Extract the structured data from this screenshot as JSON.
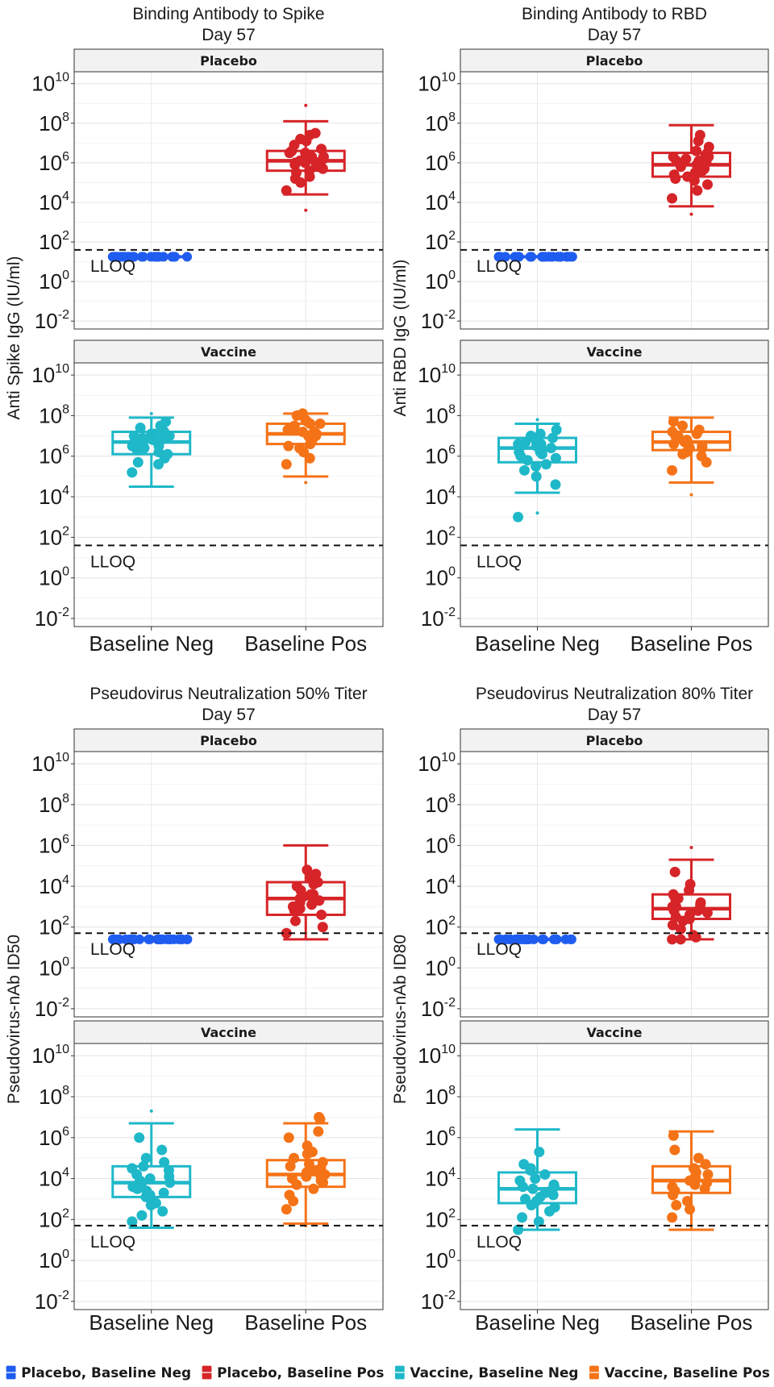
{
  "lloq_label": "LLOQ",
  "colors": {
    "Placebo, Baseline Neg": "#1f5cf0",
    "Placebo, Baseline Pos": "#d62428",
    "Vaccine, Baseline Neg": "#1fb8c9",
    "Vaccine, Baseline Pos": "#f57317"
  },
  "legend": [
    {
      "label": "Placebo, Baseline Neg",
      "color": "#1f5cf0"
    },
    {
      "label": "Placebo, Baseline Pos",
      "color": "#d62428"
    },
    {
      "label": "Vaccine, Baseline Neg",
      "color": "#1fb8c9"
    },
    {
      "label": "Vaccine, Baseline Pos",
      "color": "#f57317"
    }
  ],
  "chart_data": [
    {
      "type": "box",
      "title": "Binding Antibody to Spike",
      "subtitle": "Day 57",
      "ylabel": "Anti Spike IgG (IU/ml)",
      "y_scale": "log10",
      "ylim": [
        -2.4,
        10.6
      ],
      "y_ticks": [
        -2,
        0,
        2,
        4,
        6,
        8,
        10
      ],
      "categories": [
        "Baseline Neg",
        "Baseline Pos"
      ],
      "lloq_log10": 1.6,
      "panels": [
        {
          "label": "Placebo",
          "groups": [
            {
              "category": "Baseline Neg",
              "series": "Placebo, Baseline Neg",
              "collapsed": true,
              "min": 1.25,
              "q1": 1.25,
              "median": 1.25,
              "q3": 1.25,
              "max": 1.25,
              "outliers": [],
              "points": [
                1.25,
                1.25,
                1.25,
                1.25,
                1.25,
                1.25,
                1.25,
                1.25,
                1.25,
                1.25,
                1.25,
                1.25,
                1.25,
                1.25,
                1.25,
                1.25,
                1.25,
                1.25,
                1.25,
                1.25,
                1.25,
                1.25,
                1.25,
                1.25,
                1.25,
                1.25,
                1.25,
                1.25,
                1.25,
                1.25
              ]
            },
            {
              "category": "Baseline Pos",
              "series": "Placebo, Baseline Pos",
              "min": 4.4,
              "q1": 5.6,
              "median": 6.1,
              "q3": 6.6,
              "max": 8.1,
              "outliers": [
                3.6,
                8.9
              ],
              "points": [
                4.6,
                5.0,
                5.3,
                5.5,
                5.6,
                5.7,
                5.8,
                5.9,
                6.0,
                6.0,
                6.1,
                6.1,
                6.2,
                6.2,
                6.3,
                6.4,
                6.5,
                6.6,
                6.7,
                6.9,
                7.1,
                7.2,
                7.4,
                7.5,
                5.2,
                6.0,
                6.3,
                5.9,
                6.5
              ]
            }
          ]
        },
        {
          "label": "Vaccine",
          "groups": [
            {
              "category": "Baseline Neg",
              "series": "Vaccine, Baseline Neg",
              "min": 4.5,
              "q1": 6.1,
              "median": 6.7,
              "q3": 7.2,
              "max": 7.9,
              "outliers": [
                8.1
              ],
              "points": [
                5.2,
                5.6,
                5.7,
                5.9,
                6.1,
                6.3,
                6.4,
                6.5,
                6.6,
                6.7,
                6.8,
                6.8,
                6.9,
                7.0,
                7.1,
                7.2,
                7.3,
                7.4,
                7.5,
                7.7,
                6.2,
                6.6,
                6.9,
                7.0,
                6.5,
                6.8,
                7.1
              ]
            },
            {
              "category": "Baseline Pos",
              "series": "Vaccine, Baseline Pos",
              "min": 5.0,
              "q1": 6.6,
              "median": 7.1,
              "q3": 7.6,
              "max": 8.1,
              "outliers": [
                4.7
              ],
              "points": [
                5.6,
                5.9,
                6.2,
                6.5,
                6.7,
                6.8,
                6.9,
                7.0,
                7.1,
                7.2,
                7.2,
                7.3,
                7.4,
                7.5,
                7.6,
                7.7,
                7.8,
                8.0,
                8.1,
                6.4,
                6.9,
                7.3,
                7.6,
                7.0,
                6.6
              ]
            }
          ]
        }
      ]
    },
    {
      "type": "box",
      "title": "Binding Antibody to RBD",
      "subtitle": "Day 57",
      "ylabel": "Anti RBD IgG (IU/ml)",
      "y_scale": "log10",
      "ylim": [
        -2.4,
        10.6
      ],
      "y_ticks": [
        -2,
        0,
        2,
        4,
        6,
        8,
        10
      ],
      "categories": [
        "Baseline Neg",
        "Baseline Pos"
      ],
      "lloq_log10": 1.6,
      "panels": [
        {
          "label": "Placebo",
          "groups": [
            {
              "category": "Baseline Neg",
              "series": "Placebo, Baseline Neg",
              "collapsed": true,
              "min": 1.25,
              "q1": 1.25,
              "median": 1.25,
              "q3": 1.25,
              "max": 1.25,
              "outliers": [],
              "points": [
                1.25,
                1.25,
                1.25,
                1.25,
                1.25,
                1.25,
                1.25,
                1.25,
                1.25,
                1.25,
                1.25,
                1.25,
                1.25,
                1.25,
                1.25,
                1.25,
                1.25,
                1.25,
                1.25,
                1.25,
                1.25,
                1.25,
                1.25,
                1.25,
                1.25,
                1.25,
                1.25,
                1.25,
                1.25,
                1.25
              ]
            },
            {
              "category": "Baseline Pos",
              "series": "Placebo, Baseline Pos",
              "min": 3.8,
              "q1": 5.3,
              "median": 5.9,
              "q3": 6.5,
              "max": 7.9,
              "outliers": [
                3.4
              ],
              "points": [
                4.2,
                4.6,
                4.9,
                5.1,
                5.3,
                5.4,
                5.5,
                5.6,
                5.7,
                5.8,
                5.9,
                5.9,
                6.0,
                6.1,
                6.2,
                6.3,
                6.4,
                6.5,
                6.6,
                6.8,
                7.1,
                7.4,
                5.2,
                5.8,
                6.1,
                5.6,
                6.3
              ]
            }
          ]
        },
        {
          "label": "Vaccine",
          "groups": [
            {
              "category": "Baseline Neg",
              "series": "Vaccine, Baseline Neg",
              "min": 4.2,
              "q1": 5.7,
              "median": 6.4,
              "q3": 6.9,
              "max": 7.6,
              "outliers": [
                3.2,
                7.8
              ],
              "points": [
                3.0,
                4.6,
                5.0,
                5.3,
                5.6,
                5.8,
                6.0,
                6.2,
                6.3,
                6.4,
                6.5,
                6.6,
                6.7,
                6.8,
                6.9,
                7.0,
                7.1,
                7.3,
                5.5,
                6.1,
                6.4,
                6.6,
                5.9,
                6.2
              ]
            },
            {
              "category": "Baseline Pos",
              "series": "Vaccine, Baseline Pos",
              "min": 4.7,
              "q1": 6.3,
              "median": 6.7,
              "q3": 7.2,
              "max": 7.9,
              "outliers": [
                4.1
              ],
              "points": [
                5.3,
                5.7,
                6.0,
                6.2,
                6.4,
                6.5,
                6.6,
                6.7,
                6.8,
                6.9,
                7.0,
                7.1,
                7.2,
                7.3,
                7.5,
                7.7,
                6.1,
                6.6,
                6.9,
                7.0,
                6.4
              ]
            }
          ]
        }
      ]
    },
    {
      "type": "box",
      "title": "Pseudovirus Neutralization 50% Titer",
      "subtitle": "Day 57",
      "ylabel": "Pseudovirus-nAb ID50",
      "y_scale": "log10",
      "ylim": [
        -2.4,
        10.6
      ],
      "y_ticks": [
        -2,
        0,
        2,
        4,
        6,
        8,
        10
      ],
      "categories": [
        "Baseline Neg",
        "Baseline Pos"
      ],
      "lloq_log10": 1.7,
      "panels": [
        {
          "label": "Placebo",
          "groups": [
            {
              "category": "Baseline Neg",
              "series": "Placebo, Baseline Neg",
              "collapsed": true,
              "min": 1.4,
              "q1": 1.4,
              "median": 1.4,
              "q3": 1.4,
              "max": 1.4,
              "outliers": [],
              "points": [
                1.4,
                1.4,
                1.4,
                1.4,
                1.4,
                1.4,
                1.4,
                1.4,
                1.4,
                1.4,
                1.4,
                1.4,
                1.4,
                1.4,
                1.4,
                1.4,
                1.4,
                1.4,
                1.4,
                1.4,
                1.4,
                1.4,
                1.4,
                1.4,
                1.4,
                1.4,
                1.4,
                1.4,
                1.4,
                1.4
              ]
            },
            {
              "category": "Baseline Pos",
              "series": "Placebo, Baseline Pos",
              "min": 1.4,
              "q1": 2.6,
              "median": 3.4,
              "q3": 4.2,
              "max": 6.0,
              "outliers": [],
              "points": [
                1.7,
                2.0,
                2.3,
                2.6,
                2.8,
                3.0,
                3.2,
                3.4,
                3.5,
                3.6,
                3.8,
                4.0,
                4.2,
                4.4,
                4.6,
                4.8,
                3.1,
                3.6,
                2.9,
                4.1,
                3.3
              ]
            }
          ]
        },
        {
          "label": "Vaccine",
          "groups": [
            {
              "category": "Baseline Neg",
              "series": "Vaccine, Baseline Neg",
              "min": 1.6,
              "q1": 3.1,
              "median": 3.8,
              "q3": 4.6,
              "max": 6.7,
              "outliers": [
                7.3
              ],
              "points": [
                1.9,
                2.2,
                2.4,
                2.7,
                2.9,
                3.1,
                3.3,
                3.5,
                3.7,
                3.8,
                3.9,
                4.0,
                4.2,
                4.4,
                4.6,
                4.8,
                5.0,
                5.4,
                6.0,
                3.4,
                3.6,
                4.1,
                3.2,
                4.5,
                2.8
              ]
            },
            {
              "category": "Baseline Pos",
              "series": "Vaccine, Baseline Pos",
              "min": 1.8,
              "q1": 3.6,
              "median": 4.2,
              "q3": 4.9,
              "max": 6.7,
              "outliers": [
                1.7
              ],
              "points": [
                2.5,
                2.9,
                3.2,
                3.5,
                3.7,
                3.9,
                4.0,
                4.1,
                4.2,
                4.3,
                4.5,
                4.6,
                4.8,
                5.0,
                5.3,
                5.6,
                6.0,
                6.3,
                6.9,
                7.0,
                3.8,
                4.4,
                4.7,
                4.1,
                5.2
              ]
            }
          ]
        }
      ]
    },
    {
      "type": "box",
      "title": "Pseudovirus Neutralization 80% Titer",
      "subtitle": "Day 57",
      "ylabel": "Pseudovirus-nAb ID80",
      "y_scale": "log10",
      "ylim": [
        -2.4,
        10.6
      ],
      "y_ticks": [
        -2,
        0,
        2,
        4,
        6,
        8,
        10
      ],
      "categories": [
        "Baseline Neg",
        "Baseline Pos"
      ],
      "lloq_log10": 1.7,
      "panels": [
        {
          "label": "Placebo",
          "groups": [
            {
              "category": "Baseline Neg",
              "series": "Placebo, Baseline Neg",
              "collapsed": true,
              "min": 1.4,
              "q1": 1.4,
              "median": 1.4,
              "q3": 1.4,
              "max": 1.4,
              "outliers": [],
              "points": [
                1.4,
                1.4,
                1.4,
                1.4,
                1.4,
                1.4,
                1.4,
                1.4,
                1.4,
                1.4,
                1.4,
                1.4,
                1.4,
                1.4,
                1.4,
                1.4,
                1.4,
                1.4,
                1.4,
                1.4,
                1.4,
                1.4,
                1.4,
                1.4,
                1.4,
                1.4,
                1.4,
                1.4,
                1.4,
                1.4
              ]
            },
            {
              "category": "Baseline Pos",
              "series": "Placebo, Baseline Pos",
              "min": 1.4,
              "q1": 2.4,
              "median": 2.9,
              "q3": 3.6,
              "max": 5.3,
              "outliers": [
                5.9
              ],
              "points": [
                1.4,
                1.4,
                1.6,
                1.9,
                2.1,
                2.3,
                2.5,
                2.7,
                2.8,
                2.9,
                3.0,
                3.1,
                3.2,
                3.3,
                3.4,
                3.6,
                3.8,
                4.1,
                4.7,
                2.6,
                3.0,
                2.4,
                3.5,
                2.8,
                1.5
              ]
            }
          ]
        },
        {
          "label": "Vaccine",
          "groups": [
            {
              "category": "Baseline Neg",
              "series": "Vaccine, Baseline Neg",
              "min": 1.5,
              "q1": 2.8,
              "median": 3.5,
              "q3": 4.3,
              "max": 6.4,
              "outliers": [],
              "points": [
                1.5,
                1.9,
                2.1,
                2.4,
                2.7,
                2.9,
                3.1,
                3.3,
                3.4,
                3.5,
                3.6,
                3.7,
                3.9,
                4.0,
                4.2,
                4.5,
                4.7,
                5.3,
                3.2,
                3.6,
                3.0,
                4.4,
                2.6
              ]
            },
            {
              "category": "Baseline Pos",
              "series": "Vaccine, Baseline Pos",
              "min": 1.5,
              "q1": 3.3,
              "median": 3.9,
              "q3": 4.6,
              "max": 6.3,
              "outliers": [],
              "points": [
                2.1,
                2.5,
                2.9,
                3.2,
                3.4,
                3.6,
                3.8,
                3.9,
                4.0,
                4.2,
                4.3,
                4.5,
                4.7,
                5.0,
                5.4,
                6.1,
                3.5,
                4.1,
                4.4,
                3.7,
                2.7
              ]
            }
          ]
        }
      ]
    }
  ]
}
